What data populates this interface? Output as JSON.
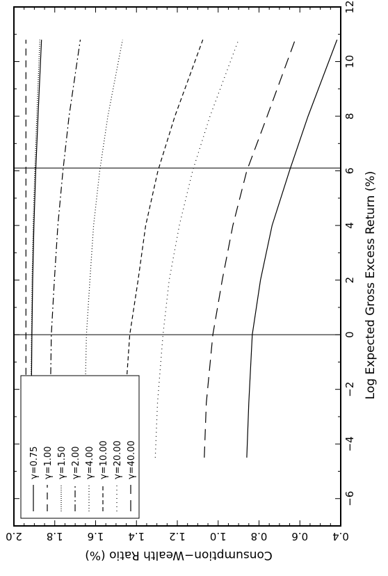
{
  "chart_data": {
    "type": "line",
    "orientation": "rotated-90",
    "xlabel": "Log Expected Gross Excess Return (%)",
    "ylabel": "Consumption−Wealth Ratio (%)",
    "xlim": [
      -7,
      12
    ],
    "ylim": [
      0.4,
      2.0
    ],
    "x_ticks": [
      -6,
      -4,
      -2,
      0,
      2,
      4,
      6,
      8,
      10,
      12
    ],
    "x_tick_labels": [
      "−6",
      "−4",
      "−2",
      "0",
      "2",
      "4",
      "6",
      "8",
      "10",
      "12"
    ],
    "y_ticks": [
      0.4,
      0.6,
      0.8,
      1.0,
      1.2,
      1.4,
      1.6,
      1.8,
      2.0
    ],
    "y_tick_labels": [
      "0.4",
      "0.6",
      "0.8",
      "1.0",
      "1.2",
      "1.4",
      "1.6",
      "1.8",
      "2.0"
    ],
    "reference_lines_x": [
      0,
      6.1
    ],
    "grid": false,
    "legend_position": "bottom-left",
    "series": [
      {
        "name": "γ=0.75",
        "style": "solid",
        "x": [
          -4.5,
          -2.5,
          0,
          2,
          4,
          6,
          8,
          10.8
        ],
        "y": [
          1.918,
          1.915,
          1.912,
          1.908,
          1.902,
          1.893,
          1.882,
          1.865
        ]
      },
      {
        "name": "γ=1.00",
        "style": "dashed",
        "x": [
          -4.5,
          -2.5,
          0,
          2,
          4,
          6,
          8,
          10.8
        ],
        "y": [
          1.941,
          1.941,
          1.941,
          1.941,
          1.941,
          1.941,
          1.941,
          1.941
        ]
      },
      {
        "name": "γ=1.50",
        "style": "dense-dotted",
        "x": [
          -4.5,
          -2.5,
          0,
          2,
          4,
          6,
          8,
          10.8
        ],
        "y": [
          1.918,
          1.917,
          1.914,
          1.911,
          1.906,
          1.898,
          1.888,
          1.873
        ]
      },
      {
        "name": "γ=2.00",
        "style": "dashdot",
        "x": [
          -4.5,
          -2.5,
          0,
          2,
          4,
          6,
          8,
          10.8
        ],
        "y": [
          1.832,
          1.822,
          1.817,
          1.802,
          1.785,
          1.76,
          1.73,
          1.675
        ]
      },
      {
        "name": "γ=4.00",
        "style": "dotted",
        "x": [
          -4.5,
          -2.5,
          0,
          2,
          4,
          6,
          8,
          10.8
        ],
        "y": [
          1.654,
          1.652,
          1.645,
          1.628,
          1.61,
          1.58,
          1.54,
          1.468
        ]
      },
      {
        "name": "γ=10.00",
        "style": "short-dashed",
        "x": [
          -4.5,
          -2.5,
          0,
          2,
          4,
          6,
          8,
          10.8
        ],
        "y": [
          1.474,
          1.456,
          1.433,
          1.392,
          1.355,
          1.295,
          1.212,
          1.075
        ]
      },
      {
        "name": "γ=20.00",
        "style": "sparse-dotted",
        "x": [
          -4.5,
          -2.5,
          0,
          2,
          4,
          6,
          8,
          10.8
        ],
        "y": [
          1.308,
          1.297,
          1.27,
          1.24,
          1.19,
          1.125,
          1.04,
          0.9
        ]
      },
      {
        "name": "γ=40.00",
        "style": "long-dashed",
        "x": [
          -4.5,
          -2.5,
          0,
          2,
          4,
          6,
          8,
          10.8
        ],
        "y": [
          1.068,
          1.058,
          1.026,
          0.98,
          0.928,
          0.86,
          0.76,
          0.623
        ]
      },
      {
        "name": "",
        "style": "solid",
        "x": [
          -4.5,
          -2.5,
          0,
          2,
          4,
          6,
          8,
          10.8
        ],
        "y": [
          0.86,
          0.85,
          0.833,
          0.793,
          0.736,
          0.651,
          0.56,
          0.418
        ]
      }
    ]
  }
}
